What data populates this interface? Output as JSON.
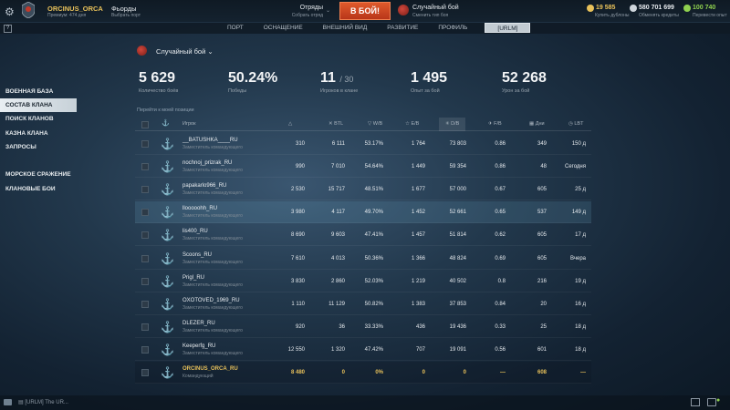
{
  "topbar": {
    "player_name": "ORCINUS_ORCA",
    "player_sub": "Премиум: 474 дня",
    "port_name": "Фьорды",
    "port_sub": "Выбрать порт",
    "squad_label": "Отряды",
    "squad_sub": "Собрать отряд",
    "battle_button": "В БОЙ!",
    "mode_name": "Случайный бой",
    "mode_sub": "Сменить тип боя",
    "doubloons": "19 585",
    "doubloons_sub": "Купить дублоны",
    "credits": "580 701 699",
    "credits_sub": "Обменять кредиты",
    "free_xp": "100 740",
    "free_xp_sub": "Перевести опыт",
    "accent_gold": "#e8c15a",
    "accent_green": "#8fd14f",
    "battle_color": "#d64a24"
  },
  "secbar": {
    "help": "?",
    "tabs": [
      "ПОРТ",
      "ОСНАЩЕНИЕ",
      "ВНЕШНИЙ ВИД",
      "РАЗВИТИЕ",
      "ПРОФИЛЬ",
      "[URLM]"
    ]
  },
  "sidebar": {
    "items": [
      "ВОЕННАЯ БАЗА",
      "СОСТАВ КЛАНА",
      "ПОИСК КЛАНОВ",
      "КАЗНА КЛАНА",
      "ЗАПРОСЫ",
      "МОРСКОЕ СРАЖЕНИЕ",
      "КЛАНОВЫЕ БОИ"
    ],
    "active_index": 1
  },
  "header": {
    "mode_label": "Случайный бой",
    "mode_chevron": "⌄"
  },
  "stats": [
    {
      "value": "5 629",
      "suffix": "",
      "label": "Количество боёв"
    },
    {
      "value": "50.24%",
      "suffix": "",
      "label": "Победы"
    },
    {
      "value": "11",
      "suffix": "/ 30",
      "label": "Игроков в клане"
    },
    {
      "value": "1 495",
      "suffix": "",
      "label": "Опыт за бой"
    },
    {
      "value": "52 268",
      "suffix": "",
      "label": "Урон за бой"
    }
  ],
  "goto_position": "Перейти к моей позиции",
  "columns": {
    "player": "Игрок",
    "btl": "BTL",
    "wb": "W/B",
    "eb": "E/B",
    "db": "D/B",
    "fb": "F/B",
    "days": "Дни",
    "lbt": "LBT"
  },
  "rows": [
    {
      "name": "__BATUSHKA____RU",
      "role": "Заместитель командующего",
      "rating": "310",
      "btl": "6 111",
      "wb": "53.17%",
      "eb": "1 764",
      "db": "73 803",
      "fb": "0.86",
      "days": "349",
      "lbt": "150 д"
    },
    {
      "name": "nochnoj_prizrak_RU",
      "role": "Заместитель командующего",
      "rating": "990",
      "btl": "7 010",
      "wb": "54.64%",
      "eb": "1 449",
      "db": "59 354",
      "fb": "0.86",
      "days": "48",
      "lbt": "Сегодня"
    },
    {
      "name": "papakarlo966_RU",
      "role": "Заместитель командующего",
      "rating": "2 530",
      "btl": "15 717",
      "wb": "48.51%",
      "eb": "1 677",
      "db": "57 000",
      "fb": "0.67",
      "days": "605",
      "lbt": "25 д"
    },
    {
      "name": "llooooohh_RU",
      "role": "Заместитель командующего",
      "rating": "3 980",
      "btl": "4 117",
      "wb": "49.70%",
      "eb": "1 452",
      "db": "52 661",
      "fb": "0.65",
      "days": "537",
      "lbt": "149 д"
    },
    {
      "name": "lis400_RU",
      "role": "Заместитель командующего",
      "rating": "8 690",
      "btl": "9 603",
      "wb": "47.41%",
      "eb": "1 457",
      "db": "51 814",
      "fb": "0.62",
      "days": "605",
      "lbt": "17 д"
    },
    {
      "name": "Scoons_RU",
      "role": "Заместитель командующего",
      "rating": "7 610",
      "btl": "4 013",
      "wb": "50.36%",
      "eb": "1 366",
      "db": "48 824",
      "fb": "0.69",
      "days": "605",
      "lbt": "Вчера"
    },
    {
      "name": "Prigl_RU",
      "role": "Заместитель командующего",
      "rating": "3 830",
      "btl": "2 860",
      "wb": "52.03%",
      "eb": "1 219",
      "db": "40 502",
      "fb": "0.8",
      "days": "216",
      "lbt": "19 д"
    },
    {
      "name": "OXOTOVED_1969_RU",
      "role": "Заместитель командующего",
      "rating": "1 110",
      "btl": "11 129",
      "wb": "50.82%",
      "eb": "1 383",
      "db": "37 853",
      "fb": "0.84",
      "days": "20",
      "lbt": "16 д"
    },
    {
      "name": "DLEZER_RU",
      "role": "Заместитель командующего",
      "rating": "920",
      "btl": "36",
      "wb": "33.33%",
      "eb": "436",
      "db": "19 436",
      "fb": "0.33",
      "days": "25",
      "lbt": "18 д"
    },
    {
      "name": "Keeperfg_RU",
      "role": "Заместитель командующего",
      "rating": "12 550",
      "btl": "1 320",
      "wb": "47.42%",
      "eb": "707",
      "db": "19 091",
      "fb": "0.56",
      "days": "601",
      "lbt": "18 д"
    },
    {
      "name": "ORCINUS_ORCA_RU",
      "role": "Командующий",
      "rating": "8 480",
      "btl": "0",
      "wb": "0%",
      "eb": "0",
      "db": "0",
      "fb": "—",
      "days": "608",
      "lbt": "—"
    }
  ],
  "highlight_row": 3,
  "self_row": 10,
  "bottombar": {
    "chat_text": "[URLM] The UR..."
  }
}
